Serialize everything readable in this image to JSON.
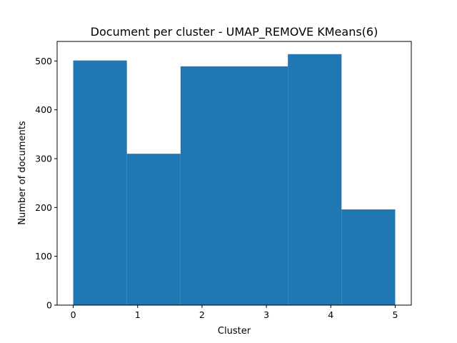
{
  "chart_data": {
    "type": "bar",
    "title": "Document per cluster - UMAP_REMOVE KMeans(6)",
    "xlabel": "Cluster",
    "ylabel": "Number of documents",
    "bins": [
      {
        "x0": 0.0,
        "x1": 0.8333,
        "value": 501
      },
      {
        "x0": 0.8333,
        "x1": 1.6667,
        "value": 310
      },
      {
        "x0": 1.6667,
        "x1": 2.5,
        "value": 489
      },
      {
        "x0": 2.5,
        "x1": 3.3333,
        "value": 489
      },
      {
        "x0": 3.3333,
        "x1": 4.1667,
        "value": 514
      },
      {
        "x0": 4.1667,
        "x1": 5.0,
        "value": 196
      }
    ],
    "xlim": [
      -0.25,
      5.25
    ],
    "ylim": [
      0,
      540
    ],
    "xticks": [
      0,
      1,
      2,
      3,
      4,
      5
    ],
    "yticks": [
      0,
      100,
      200,
      300,
      400,
      500
    ],
    "bar_color": "#1f77b4",
    "grid": false,
    "legend": "none"
  }
}
